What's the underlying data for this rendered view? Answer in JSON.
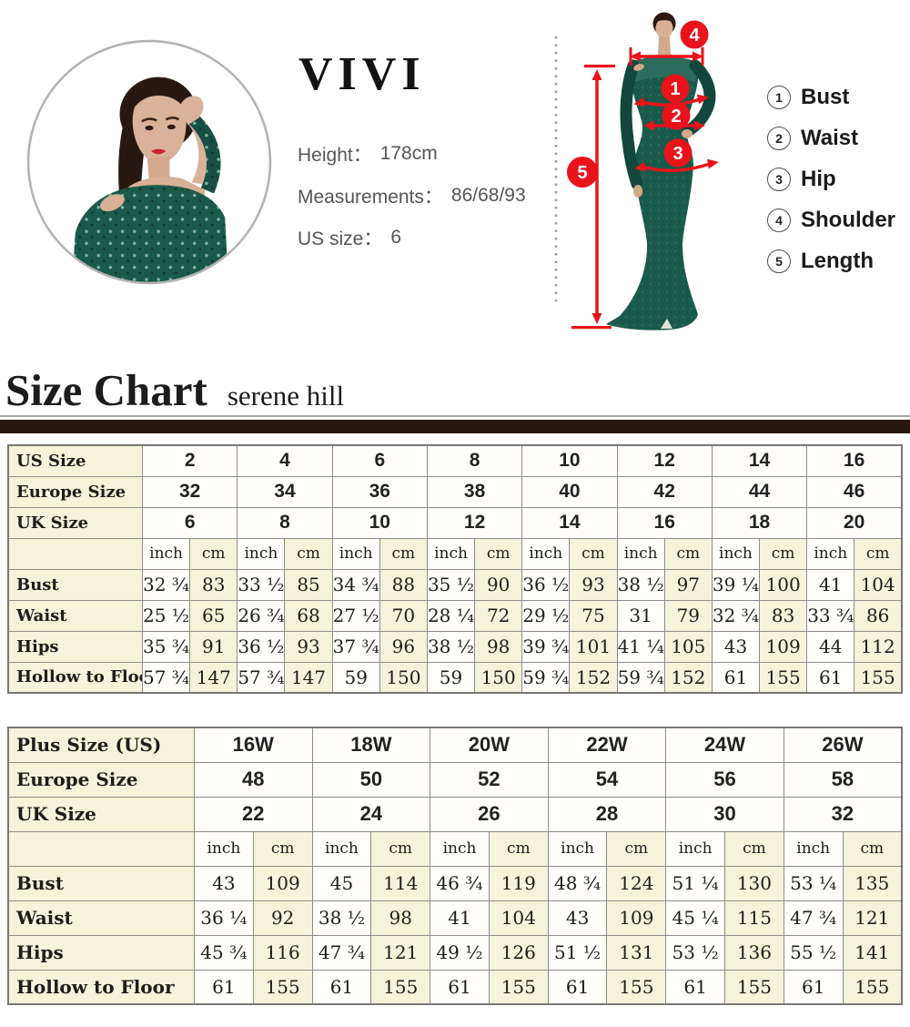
{
  "model_profile": {
    "brand": "VIVI",
    "fields": [
      {
        "label": "Height：",
        "value": "178cm"
      },
      {
        "label": "Measurements：",
        "value": "86/68/93"
      },
      {
        "label": "US size：",
        "value": "6"
      }
    ]
  },
  "diagram": {
    "markers": [
      "1",
      "2",
      "3",
      "4",
      "5"
    ],
    "legend": [
      {
        "num": "1",
        "label": "Bust"
      },
      {
        "num": "2",
        "label": "Waist"
      },
      {
        "num": "3",
        "label": "Hip"
      },
      {
        "num": "4",
        "label": "Shoulder"
      },
      {
        "num": "5",
        "label": "Length"
      }
    ],
    "colors": {
      "marker_red": "#e8131b",
      "dress_green": "#1a5a4b"
    }
  },
  "section_header": {
    "title": "Size Chart",
    "subtitle": "serene hill"
  },
  "table1": {
    "unit_inch": "inch",
    "unit_cm": "cm",
    "size_rows": [
      {
        "label": "US Size",
        "values": [
          "2",
          "4",
          "6",
          "8",
          "10",
          "12",
          "14",
          "16"
        ]
      },
      {
        "label": "Europe Size",
        "values": [
          "32",
          "34",
          "36",
          "38",
          "40",
          "42",
          "44",
          "46"
        ]
      },
      {
        "label": "UK Size",
        "values": [
          "6",
          "8",
          "10",
          "12",
          "14",
          "16",
          "18",
          "20"
        ]
      }
    ],
    "measure_rows": [
      {
        "label": "Bust",
        "values": [
          [
            "32 ¾",
            "83"
          ],
          [
            "33 ½",
            "85"
          ],
          [
            "34 ¾",
            "88"
          ],
          [
            "35 ½",
            "90"
          ],
          [
            "36 ½",
            "93"
          ],
          [
            "38 ½",
            "97"
          ],
          [
            "39 ¼",
            "100"
          ],
          [
            "41",
            "104"
          ]
        ]
      },
      {
        "label": "Waist",
        "values": [
          [
            "25 ½",
            "65"
          ],
          [
            "26 ¾",
            "68"
          ],
          [
            "27 ½",
            "70"
          ],
          [
            "28 ¼",
            "72"
          ],
          [
            "29 ½",
            "75"
          ],
          [
            "31",
            "79"
          ],
          [
            "32 ¾",
            "83"
          ],
          [
            "33 ¾",
            "86"
          ]
        ]
      },
      {
        "label": "Hips",
        "values": [
          [
            "35 ¾",
            "91"
          ],
          [
            "36 ½",
            "93"
          ],
          [
            "37 ¾",
            "96"
          ],
          [
            "38 ½",
            "98"
          ],
          [
            "39 ¾",
            "101"
          ],
          [
            "41 ¼",
            "105"
          ],
          [
            "43",
            "109"
          ],
          [
            "44",
            "112"
          ]
        ]
      },
      {
        "label": "Hollow to Floor",
        "values": [
          [
            "57 ¾",
            "147"
          ],
          [
            "57 ¾",
            "147"
          ],
          [
            "59",
            "150"
          ],
          [
            "59",
            "150"
          ],
          [
            "59 ¾",
            "152"
          ],
          [
            "59 ¾",
            "152"
          ],
          [
            "61",
            "155"
          ],
          [
            "61",
            "155"
          ]
        ]
      }
    ]
  },
  "table2": {
    "unit_inch": "inch",
    "unit_cm": "cm",
    "size_rows": [
      {
        "label": "Plus Size (US)",
        "values": [
          "16W",
          "18W",
          "20W",
          "22W",
          "24W",
          "26W"
        ]
      },
      {
        "label": "Europe Size",
        "values": [
          "48",
          "50",
          "52",
          "54",
          "56",
          "58"
        ]
      },
      {
        "label": "UK Size",
        "values": [
          "22",
          "24",
          "26",
          "28",
          "30",
          "32"
        ]
      }
    ],
    "measure_rows": [
      {
        "label": "Bust",
        "values": [
          [
            "43",
            "109"
          ],
          [
            "45",
            "114"
          ],
          [
            "46 ¾",
            "119"
          ],
          [
            "48 ¾",
            "124"
          ],
          [
            "51 ¼",
            "130"
          ],
          [
            "53 ¼",
            "135"
          ]
        ]
      },
      {
        "label": "Waist",
        "values": [
          [
            "36 ¼",
            "92"
          ],
          [
            "38 ½",
            "98"
          ],
          [
            "41",
            "104"
          ],
          [
            "43",
            "109"
          ],
          [
            "45 ¼",
            "115"
          ],
          [
            "47 ¾",
            "121"
          ]
        ]
      },
      {
        "label": "Hips",
        "values": [
          [
            "45 ¾",
            "116"
          ],
          [
            "47 ¾",
            "121"
          ],
          [
            "49 ½",
            "126"
          ],
          [
            "51 ½",
            "131"
          ],
          [
            "53 ½",
            "136"
          ],
          [
            "55 ½",
            "141"
          ]
        ]
      },
      {
        "label": "Hollow to Floor",
        "values": [
          [
            "61",
            "155"
          ],
          [
            "61",
            "155"
          ],
          [
            "61",
            "155"
          ],
          [
            "61",
            "155"
          ],
          [
            "61",
            "155"
          ],
          [
            "61",
            "155"
          ]
        ]
      }
    ]
  }
}
